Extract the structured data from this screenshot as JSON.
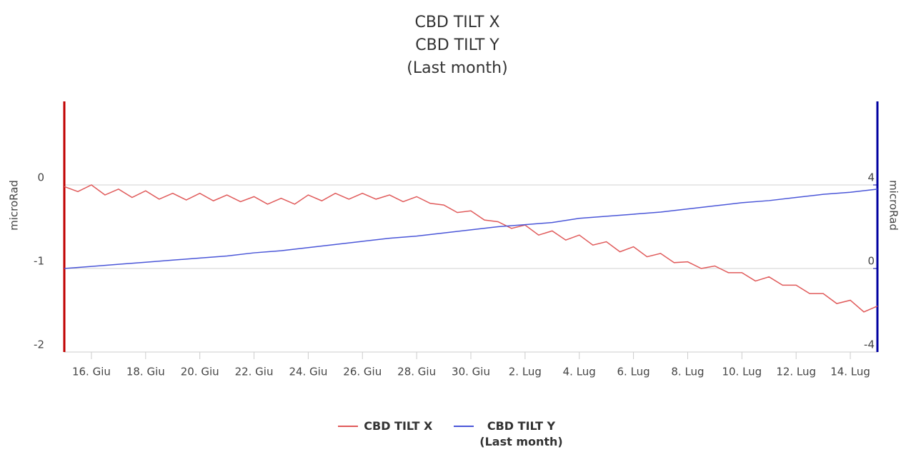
{
  "chart_data": {
    "type": "line",
    "title": [
      "CBD TILT X",
      "CBD TILT Y",
      "(Last month)"
    ],
    "ylabel": "microRad",
    "y2label": "microRad",
    "xlim": [
      15,
      45
    ],
    "xticks": [
      {
        "value": 16,
        "label": "16. Giu"
      },
      {
        "value": 18,
        "label": "18. Giu"
      },
      {
        "value": 20,
        "label": "20. Giu"
      },
      {
        "value": 22,
        "label": "22. Giu"
      },
      {
        "value": 24,
        "label": "24. Giu"
      },
      {
        "value": 26,
        "label": "26. Giu"
      },
      {
        "value": 28,
        "label": "28. Giu"
      },
      {
        "value": 30,
        "label": "30. Giu"
      },
      {
        "value": 32,
        "label": "2. Lug"
      },
      {
        "value": 34,
        "label": "4. Lug"
      },
      {
        "value": 36,
        "label": "6. Lug"
      },
      {
        "value": 38,
        "label": "8. Lug"
      },
      {
        "value": 40,
        "label": "10. Lug"
      },
      {
        "value": 42,
        "label": "12. Lug"
      },
      {
        "value": 44,
        "label": "14. Lug"
      }
    ],
    "ylim": [
      -2,
      1
    ],
    "yticks": [
      -2,
      -1,
      0
    ],
    "ycolor": "#c00000",
    "y2lim": [
      -4,
      8
    ],
    "y2ticks": [
      -4,
      0,
      4
    ],
    "y2color": "#0000a0",
    "grid": true,
    "series": [
      {
        "name": "CBD TILT X",
        "color": "#e05a5a",
        "axis": "y",
        "x": [
          15,
          15.5,
          16,
          16.5,
          17,
          17.5,
          18,
          18.5,
          19,
          19.5,
          20,
          20.5,
          21,
          21.5,
          22,
          22.5,
          23,
          23.5,
          24,
          24.5,
          25,
          25.5,
          26,
          26.5,
          27,
          27.5,
          28,
          28.5,
          29,
          29.5,
          30,
          30.5,
          31,
          31.5,
          32,
          32.5,
          33,
          33.5,
          34,
          34.5,
          35,
          35.5,
          36,
          36.5,
          37,
          37.5,
          38,
          38.5,
          39,
          39.5,
          40,
          40.5,
          41,
          41.5,
          42,
          42.5,
          43,
          43.5,
          44,
          44.5,
          45
        ],
        "values": [
          -0.02,
          -0.08,
          0.0,
          -0.12,
          -0.05,
          -0.15,
          -0.07,
          -0.17,
          -0.1,
          -0.18,
          -0.1,
          -0.19,
          -0.12,
          -0.2,
          -0.14,
          -0.23,
          -0.16,
          -0.23,
          -0.12,
          -0.19,
          -0.1,
          -0.17,
          -0.1,
          -0.17,
          -0.12,
          -0.2,
          -0.14,
          -0.22,
          -0.24,
          -0.33,
          -0.31,
          -0.42,
          -0.44,
          -0.52,
          -0.48,
          -0.6,
          -0.55,
          -0.66,
          -0.6,
          -0.72,
          -0.68,
          -0.8,
          -0.74,
          -0.86,
          -0.82,
          -0.93,
          -0.92,
          -1.0,
          -0.97,
          -1.05,
          -1.05,
          -1.15,
          -1.1,
          -1.2,
          -1.2,
          -1.3,
          -1.3,
          -1.42,
          -1.38,
          -1.52,
          -1.45
        ]
      },
      {
        "name": "CBD TILT Y\n(Last month)",
        "color": "#4a56d8",
        "axis": "y2",
        "x": [
          15,
          16,
          17,
          18,
          19,
          20,
          21,
          22,
          23,
          24,
          25,
          26,
          27,
          28,
          29,
          30,
          31,
          32,
          33,
          34,
          35,
          36,
          37,
          38,
          39,
          40,
          41,
          42,
          43,
          44,
          45
        ],
        "values": [
          0.0,
          0.1,
          0.2,
          0.3,
          0.4,
          0.5,
          0.6,
          0.75,
          0.85,
          1.0,
          1.15,
          1.3,
          1.45,
          1.55,
          1.7,
          1.85,
          2.0,
          2.1,
          2.2,
          2.4,
          2.5,
          2.6,
          2.7,
          2.85,
          3.0,
          3.15,
          3.25,
          3.4,
          3.55,
          3.65,
          3.8
        ]
      }
    ],
    "legend": "bottom"
  }
}
